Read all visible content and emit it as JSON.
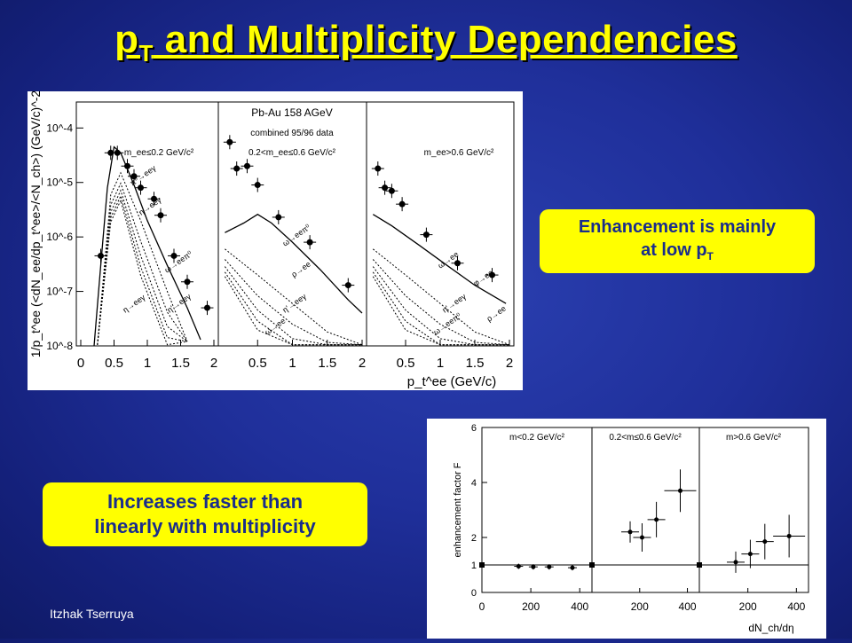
{
  "slide": {
    "title_main": "p",
    "title_sub": "T",
    "title_rest": " and Multiplicity Dependencies",
    "footer": "Itzhak Tserruya"
  },
  "callouts": {
    "enhancement_line1": "Enhancement is mainly",
    "enhancement_line2": "at low p",
    "enhancement_sub": "T",
    "increase_line1": "Increases faster than",
    "increase_line2": "linearly with multiplicity"
  },
  "colors": {
    "background": "#1f2f9a",
    "title": "#ffff00",
    "callout_bg": "#ffff00",
    "callout_text": "#1a2d8c"
  },
  "plot1": {
    "ylabel": "1/p_t^ee (<dN_ee/dp_t^ee>/<N_ch>) (GeV/c)^-2",
    "xlabel": "p_t^ee (GeV/c)",
    "header_line1": "Pb-Au 158 AGeV",
    "header_line2": "combined 95/96 data",
    "panel1_label": "m_ee≤0.2 GeV/c²",
    "panel2_label": "0.2<m_ee≤0.6 GeV/c²",
    "panel3_label": "m_ee>0.6 GeV/c²",
    "y_ticks": [
      "10^-4",
      "10^-5",
      "10^-6",
      "10^-7",
      "10^-8"
    ],
    "x_ticks_panel1": [
      "0",
      "0.5",
      "1",
      "1.5",
      "2"
    ],
    "x_ticks_panel2": [
      "0.5",
      "1",
      "1.5",
      "2"
    ],
    "x_ticks_panel3": [
      "0.5",
      "1",
      "1.5",
      "2"
    ],
    "curve_labels": [
      "π⁰→eeγ",
      "η→eeγ",
      "ω→eeπ⁰",
      "η'→eeγ",
      "η→eeγ",
      "ω→eeπ⁰",
      "ρ→ee",
      "η'→eeγ",
      "ω→ee",
      "ω→ee",
      "φ→ee",
      "ρ→ee",
      "η'→eeγ",
      "ω→eeπ⁰"
    ]
  },
  "plot2": {
    "ylabel": "enhancement factor  F",
    "xlabel": "dN_ch/dη",
    "panel1_label": "m<0.2 GeV/c²",
    "panel2_label": "0.2<m≤0.6 GeV/c²",
    "panel3_label": "m>0.6 GeV/c²",
    "y_ticks": [
      "0",
      "1",
      "2",
      "4",
      "6"
    ],
    "x_ticks_panel1": [
      "0",
      "200",
      "400"
    ],
    "x_ticks_panel2": [
      "200",
      "400"
    ],
    "x_ticks_panel3": [
      "200",
      "400"
    ]
  },
  "chart_data": [
    {
      "type": "scatter",
      "title": "Pb-Au 158 AGeV",
      "subtitle": "combined 95/96 data",
      "xlabel": "p_t^ee (GeV/c)",
      "ylabel": "1/p_t^ee (<dN_ee/dp_t^ee>/<N_ch>) (GeV/c)^-2",
      "log_y": true,
      "ylim": [
        1e-08,
        0.0003
      ],
      "xlim": [
        0,
        2
      ],
      "panels": [
        {
          "label": "m_ee≤0.2 GeV/c²",
          "x": [
            0.3,
            0.45,
            0.55,
            0.7,
            0.8,
            0.9,
            1.1,
            1.2,
            1.4,
            1.6,
            1.9
          ],
          "y": [
            4.5e-07,
            3.5e-05,
            3.5e-05,
            2e-05,
            1.3e-05,
            8e-06,
            5e-06,
            2.5e-06,
            4.5e-07,
            1.5e-07,
            5e-08
          ]
        },
        {
          "label": "0.2<m_ee≤0.6 GeV/c²",
          "x": [
            0.1,
            0.2,
            0.35,
            0.5,
            0.8,
            1.25,
            1.8
          ],
          "y": [
            5.5e-05,
            1.8e-05,
            2e-05,
            9e-06,
            2.3e-06,
            8e-07,
            1.3e-07
          ]
        },
        {
          "label": "m_ee>0.6 GeV/c²",
          "x": [
            0.1,
            0.2,
            0.3,
            0.45,
            0.8,
            1.25,
            1.75
          ],
          "y": [
            1.8e-05,
            8e-06,
            7e-06,
            4e-06,
            1.1e-06,
            3.3e-07,
            2e-07
          ]
        }
      ]
    },
    {
      "type": "scatter",
      "xlabel": "dN_ch/dη",
      "ylabel": "enhancement factor  F",
      "ylim": [
        0,
        6
      ],
      "xlim": [
        0,
        450
      ],
      "panels": [
        {
          "label": "m<0.2 GeV/c²",
          "x": [
            150,
            210,
            275,
            370
          ],
          "y": [
            0.95,
            0.93,
            0.93,
            0.9
          ]
        },
        {
          "label": "0.2<m≤0.6 GeV/c²",
          "x": [
            160,
            210,
            270,
            370
          ],
          "y": [
            2.2,
            2.0,
            2.65,
            3.7
          ]
        },
        {
          "label": "m>0.6 GeV/c²",
          "x": [
            150,
            210,
            270,
            370
          ],
          "y": [
            1.1,
            1.4,
            1.85,
            2.05
          ]
        }
      ]
    }
  ]
}
